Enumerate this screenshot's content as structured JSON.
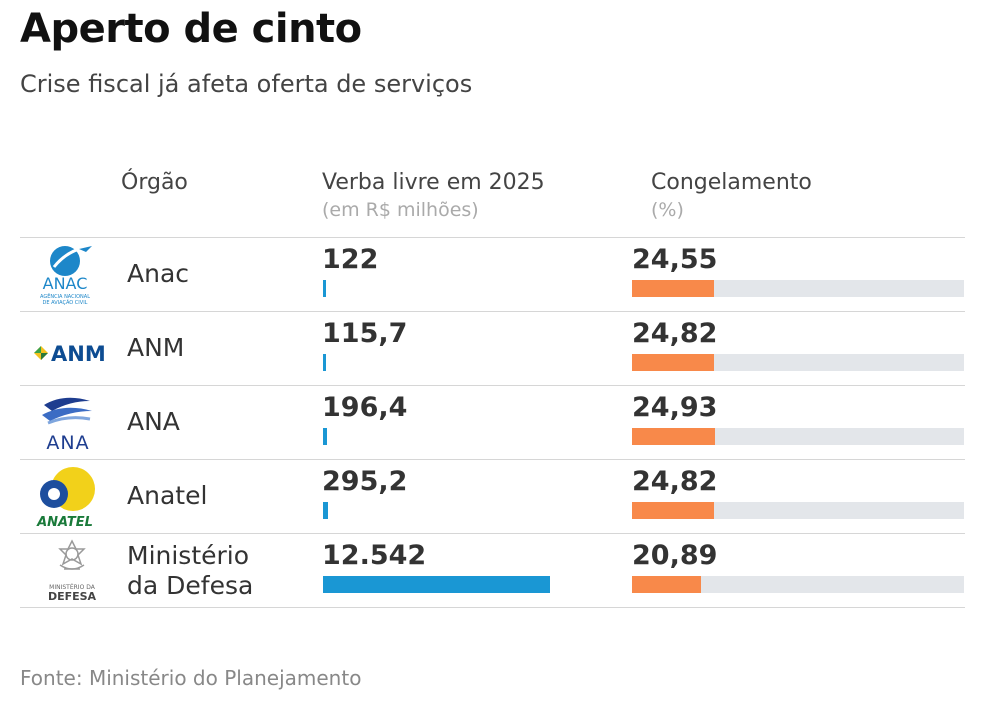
{
  "title": "Aperto de cinto",
  "subtitle": "Crise fiscal já afeta oferta de serviços",
  "headers": {
    "orgao": "Órgão",
    "verba": "Verba livre em 2025",
    "verba_unit": "(em R$ milhões)",
    "congelamento": "Congelamento",
    "congelamento_unit": "(%)"
  },
  "logos": {
    "anac_text": "ANAC",
    "anac_small1": "AGÊNCIA NACIONAL",
    "anac_small2": "DE AVIAÇÃO CIVIL",
    "anm_text": "ANM",
    "ana_text": "ANA",
    "anatel_text": "ANATEL",
    "defesa_small": "MINISTÉRIO DA",
    "defesa_text": "DEFESA"
  },
  "rows": [
    {
      "orgao": "Anac",
      "verba_label": "122"
    },
    {
      "orgao": "ANM",
      "verba_label": "115,7"
    },
    {
      "orgao": "ANA",
      "verba_label": "196,4"
    },
    {
      "orgao": "Anatel",
      "verba_label": "295,2"
    },
    {
      "orgao_line1": "Ministério",
      "orgao_line2": "da Defesa",
      "verba_label": "12.542"
    }
  ],
  "chart_data": {
    "type": "table",
    "title": "Aperto de cinto",
    "subtitle": "Crise fiscal já afeta oferta de serviços",
    "categories": [
      "Anac",
      "ANM",
      "ANA",
      "Anatel",
      "Ministério da Defesa"
    ],
    "series": [
      {
        "name": "Verba livre em 2025 (em R$ milhões)",
        "values": [
          122,
          115.7,
          196.4,
          295.2,
          12542
        ],
        "max": 12542
      },
      {
        "name": "Congelamento (%)",
        "values": [
          24.55,
          24.82,
          24.93,
          24.82,
          20.89
        ],
        "labels": [
          "24,55",
          "24,82",
          "24,93",
          "24,82",
          "20,89"
        ],
        "max": 100
      }
    ],
    "colors": {
      "verba": "#1a97d4",
      "congelamento": "#f8894a",
      "track": "#e3e6ea"
    }
  },
  "source": "Fonte: Ministério do Planejamento"
}
